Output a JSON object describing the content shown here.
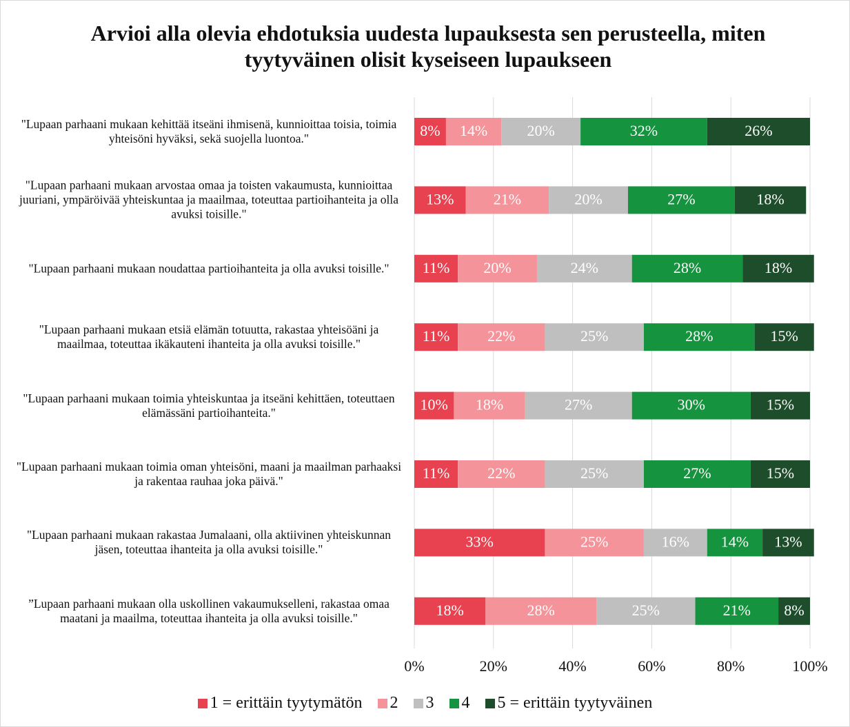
{
  "chart_data": {
    "type": "stacked-bar-horizontal",
    "title": "Arvioi alla olevia ehdotuksia uudesta lupauksesta sen perusteella, miten tyytyväinen olisit kyseiseen lupaukseen",
    "categories": [
      "\"Lupaan parhaani mukaan kehittää itseäni ihmisenä, kunnioittaa toisia, toimia yhteisöni hyväksi, sekä suojella luontoa.\"",
      "\"Lupaan parhaani mukaan arvostaa omaa ja toisten vakaumusta, kunnioittaa juuriani, ympäröivää yhteiskuntaa ja maailmaa, toteuttaa partioihanteita ja olla avuksi toisille.\"",
      "\"Lupaan parhaani mukaan noudattaa partioihanteita ja olla avuksi toisille.\"",
      "\"Lupaan parhaani mukaan etsiä elämän totuutta, rakastaa yhteisöäni ja maailmaa, toteuttaa ikäkauteni ihanteita ja olla avuksi toisille.\"",
      "\"Lupaan parhaani mukaan toimia yhteiskuntaa ja itseäni kehittäen, toteuttaen elämässäni partioihanteita.\"",
      "\"Lupaan parhaani mukaan toimia oman yhteisöni, maani ja maailman parhaaksi ja rakentaa rauhaa joka päivä.\"",
      "\"Lupaan parhaani mukaan rakastaa Jumalaani, olla aktiivinen yhteiskunnan jäsen, toteuttaa ihanteita ja olla avuksi toisille.\"",
      "”Lupaan parhaani mukaan olla uskollinen vakaumukselleni, rakastaa omaa maatani ja maailma, toteuttaa ihanteita ja olla avuksi toisille.\""
    ],
    "series": [
      {
        "name": "1 = erittäin tyytymätön",
        "color": "#e8414f",
        "values": [
          8,
          13,
          11,
          11,
          10,
          11,
          33,
          18
        ],
        "value_labels": [
          "8%",
          "13%",
          "11%",
          "11%",
          "10%",
          "11%",
          "33%",
          "18%"
        ]
      },
      {
        "name": "2",
        "color": "#f4939a",
        "values": [
          14,
          21,
          20,
          22,
          18,
          22,
          25,
          28
        ],
        "value_labels": [
          "14%",
          "21%",
          "20%",
          "22%",
          "18%",
          "22%",
          "25%",
          "28%"
        ]
      },
      {
        "name": "3",
        "color": "#bfbfbf",
        "values": [
          20,
          20,
          24,
          25,
          27,
          25,
          16,
          25
        ],
        "value_labels": [
          "20%",
          "20%",
          "24%",
          "25%",
          "27%",
          "25%",
          "16%",
          "25%"
        ]
      },
      {
        "name": "4",
        "color": "#16933f",
        "values": [
          32,
          27,
          28,
          28,
          30,
          27,
          14,
          21
        ],
        "value_labels": [
          "32%",
          "27%",
          "28%",
          "28%",
          "30%",
          "27%",
          "14%",
          "21%"
        ]
      },
      {
        "name": "5 = erittäin tyytyväinen",
        "color": "#1e4d2b",
        "values": [
          26,
          18,
          18,
          15,
          15,
          15,
          13,
          8
        ],
        "value_labels": [
          "26%",
          "18%",
          "18%",
          "15%",
          "15%",
          "15%",
          "13%",
          "8%"
        ]
      }
    ],
    "xlim": [
      0,
      100
    ],
    "xticks": [
      {
        "value": 0,
        "label": "0%"
      },
      {
        "value": 20,
        "label": "20%"
      },
      {
        "value": 40,
        "label": "40%"
      },
      {
        "value": 60,
        "label": "60%"
      },
      {
        "value": 80,
        "label": "80%"
      },
      {
        "value": 100,
        "label": "100%"
      }
    ],
    "grid": true,
    "legend": "bottom"
  }
}
